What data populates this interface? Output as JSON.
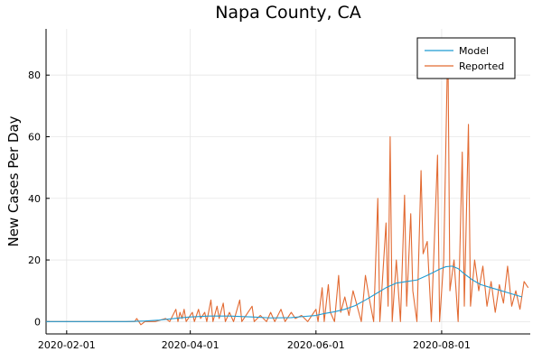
{
  "chart_data": {
    "type": "line",
    "title": "Napa County, CA",
    "xlabel": "",
    "ylabel": "New Cases Per Day",
    "x_axis": {
      "type": "date",
      "range": [
        "2020-01-22",
        "2020-09-13"
      ],
      "ticks": [
        "2020-02-01",
        "2020-04-01",
        "2020-06-01",
        "2020-08-01"
      ]
    },
    "y_axis": {
      "range": [
        -4,
        95
      ],
      "ticks": [
        0,
        20,
        40,
        60,
        80
      ]
    },
    "grid": true,
    "legend": {
      "position": "top-right"
    },
    "series": [
      {
        "name": "Model",
        "color": "#1f9bd2",
        "points": [
          [
            "2020-01-22",
            0
          ],
          [
            "2020-03-01",
            0
          ],
          [
            "2020-03-10",
            0.2
          ],
          [
            "2020-03-17",
            0.5
          ],
          [
            "2020-03-24",
            1.0
          ],
          [
            "2020-04-01",
            1.5
          ],
          [
            "2020-04-10",
            1.8
          ],
          [
            "2020-04-20",
            1.8
          ],
          [
            "2020-05-01",
            1.5
          ],
          [
            "2020-05-10",
            1.2
          ],
          [
            "2020-05-20",
            1.3
          ],
          [
            "2020-05-25",
            1.6
          ],
          [
            "2020-06-01",
            2.0
          ],
          [
            "2020-06-05",
            2.6
          ],
          [
            "2020-06-10",
            3.2
          ],
          [
            "2020-06-15",
            4.0
          ],
          [
            "2020-06-20",
            5.2
          ],
          [
            "2020-06-25",
            7.0
          ],
          [
            "2020-06-30",
            9.0
          ],
          [
            "2020-07-05",
            11.0
          ],
          [
            "2020-07-10",
            12.5
          ],
          [
            "2020-07-15",
            13.0
          ],
          [
            "2020-07-20",
            13.5
          ],
          [
            "2020-07-25",
            15.0
          ],
          [
            "2020-07-28",
            16.0
          ],
          [
            "2020-07-31",
            17.0
          ],
          [
            "2020-08-03",
            17.8
          ],
          [
            "2020-08-06",
            18.0
          ],
          [
            "2020-08-09",
            17.2
          ],
          [
            "2020-08-12",
            15.5
          ],
          [
            "2020-08-16",
            13.5
          ],
          [
            "2020-08-20",
            12.0
          ],
          [
            "2020-08-25",
            11.0
          ],
          [
            "2020-08-30",
            10.0
          ],
          [
            "2020-09-04",
            9.0
          ],
          [
            "2020-09-09",
            8.0
          ]
        ]
      },
      {
        "name": "Reported",
        "color": "#e26a32",
        "points": [
          [
            "2020-01-22",
            0
          ],
          [
            "2020-03-01",
            0
          ],
          [
            "2020-03-05",
            0
          ],
          [
            "2020-03-06",
            1
          ],
          [
            "2020-03-07",
            0
          ],
          [
            "2020-03-08",
            -1
          ],
          [
            "2020-03-10",
            0
          ],
          [
            "2020-03-15",
            0
          ],
          [
            "2020-03-20",
            1
          ],
          [
            "2020-03-22",
            0
          ],
          [
            "2020-03-25",
            4
          ],
          [
            "2020-03-26",
            0
          ],
          [
            "2020-03-27",
            3
          ],
          [
            "2020-03-28",
            1
          ],
          [
            "2020-03-29",
            4
          ],
          [
            "2020-03-30",
            0
          ],
          [
            "2020-04-02",
            3
          ],
          [
            "2020-04-03",
            0
          ],
          [
            "2020-04-05",
            4
          ],
          [
            "2020-04-06",
            1
          ],
          [
            "2020-04-08",
            3
          ],
          [
            "2020-04-09",
            0
          ],
          [
            "2020-04-11",
            7
          ],
          [
            "2020-04-12",
            0
          ],
          [
            "2020-04-14",
            5
          ],
          [
            "2020-04-15",
            1
          ],
          [
            "2020-04-17",
            6
          ],
          [
            "2020-04-18",
            0
          ],
          [
            "2020-04-20",
            3
          ],
          [
            "2020-04-22",
            0
          ],
          [
            "2020-04-25",
            7
          ],
          [
            "2020-04-26",
            0
          ],
          [
            "2020-04-28",
            2
          ],
          [
            "2020-05-01",
            5
          ],
          [
            "2020-05-02",
            0
          ],
          [
            "2020-05-05",
            2
          ],
          [
            "2020-05-08",
            0
          ],
          [
            "2020-05-10",
            3
          ],
          [
            "2020-05-12",
            0
          ],
          [
            "2020-05-15",
            4
          ],
          [
            "2020-05-17",
            0
          ],
          [
            "2020-05-20",
            3
          ],
          [
            "2020-05-22",
            1
          ],
          [
            "2020-05-25",
            2
          ],
          [
            "2020-05-28",
            0
          ],
          [
            "2020-06-01",
            4
          ],
          [
            "2020-06-02",
            0
          ],
          [
            "2020-06-04",
            11
          ],
          [
            "2020-06-05",
            0
          ],
          [
            "2020-06-07",
            12
          ],
          [
            "2020-06-08",
            3
          ],
          [
            "2020-06-10",
            0
          ],
          [
            "2020-06-12",
            15
          ],
          [
            "2020-06-13",
            3
          ],
          [
            "2020-06-15",
            8
          ],
          [
            "2020-06-17",
            2
          ],
          [
            "2020-06-19",
            10
          ],
          [
            "2020-06-21",
            5
          ],
          [
            "2020-06-23",
            0
          ],
          [
            "2020-06-25",
            15
          ],
          [
            "2020-06-27",
            7
          ],
          [
            "2020-06-29",
            0
          ],
          [
            "2020-07-01",
            40
          ],
          [
            "2020-07-02",
            0
          ],
          [
            "2020-07-05",
            32
          ],
          [
            "2020-07-06",
            5
          ],
          [
            "2020-07-07",
            60
          ],
          [
            "2020-07-08",
            0
          ],
          [
            "2020-07-10",
            20
          ],
          [
            "2020-07-12",
            0
          ],
          [
            "2020-07-14",
            41
          ],
          [
            "2020-07-15",
            5
          ],
          [
            "2020-07-17",
            35
          ],
          [
            "2020-07-18",
            10
          ],
          [
            "2020-07-20",
            0
          ],
          [
            "2020-07-22",
            49
          ],
          [
            "2020-07-23",
            22
          ],
          [
            "2020-07-25",
            26
          ],
          [
            "2020-07-27",
            0
          ],
          [
            "2020-07-30",
            54
          ],
          [
            "2020-07-31",
            0
          ],
          [
            "2020-08-02",
            20
          ],
          [
            "2020-08-04",
            92
          ],
          [
            "2020-08-05",
            10
          ],
          [
            "2020-08-07",
            20
          ],
          [
            "2020-08-09",
            0
          ],
          [
            "2020-08-11",
            55
          ],
          [
            "2020-08-12",
            5
          ],
          [
            "2020-08-14",
            64
          ],
          [
            "2020-08-15",
            5
          ],
          [
            "2020-08-17",
            20
          ],
          [
            "2020-08-19",
            10
          ],
          [
            "2020-08-21",
            18
          ],
          [
            "2020-08-23",
            5
          ],
          [
            "2020-08-25",
            13
          ],
          [
            "2020-08-27",
            3
          ],
          [
            "2020-08-29",
            12
          ],
          [
            "2020-08-31",
            6
          ],
          [
            "2020-09-02",
            18
          ],
          [
            "2020-09-04",
            5
          ],
          [
            "2020-09-06",
            10
          ],
          [
            "2020-09-08",
            4
          ],
          [
            "2020-09-10",
            13
          ],
          [
            "2020-09-12",
            11
          ]
        ]
      }
    ]
  }
}
